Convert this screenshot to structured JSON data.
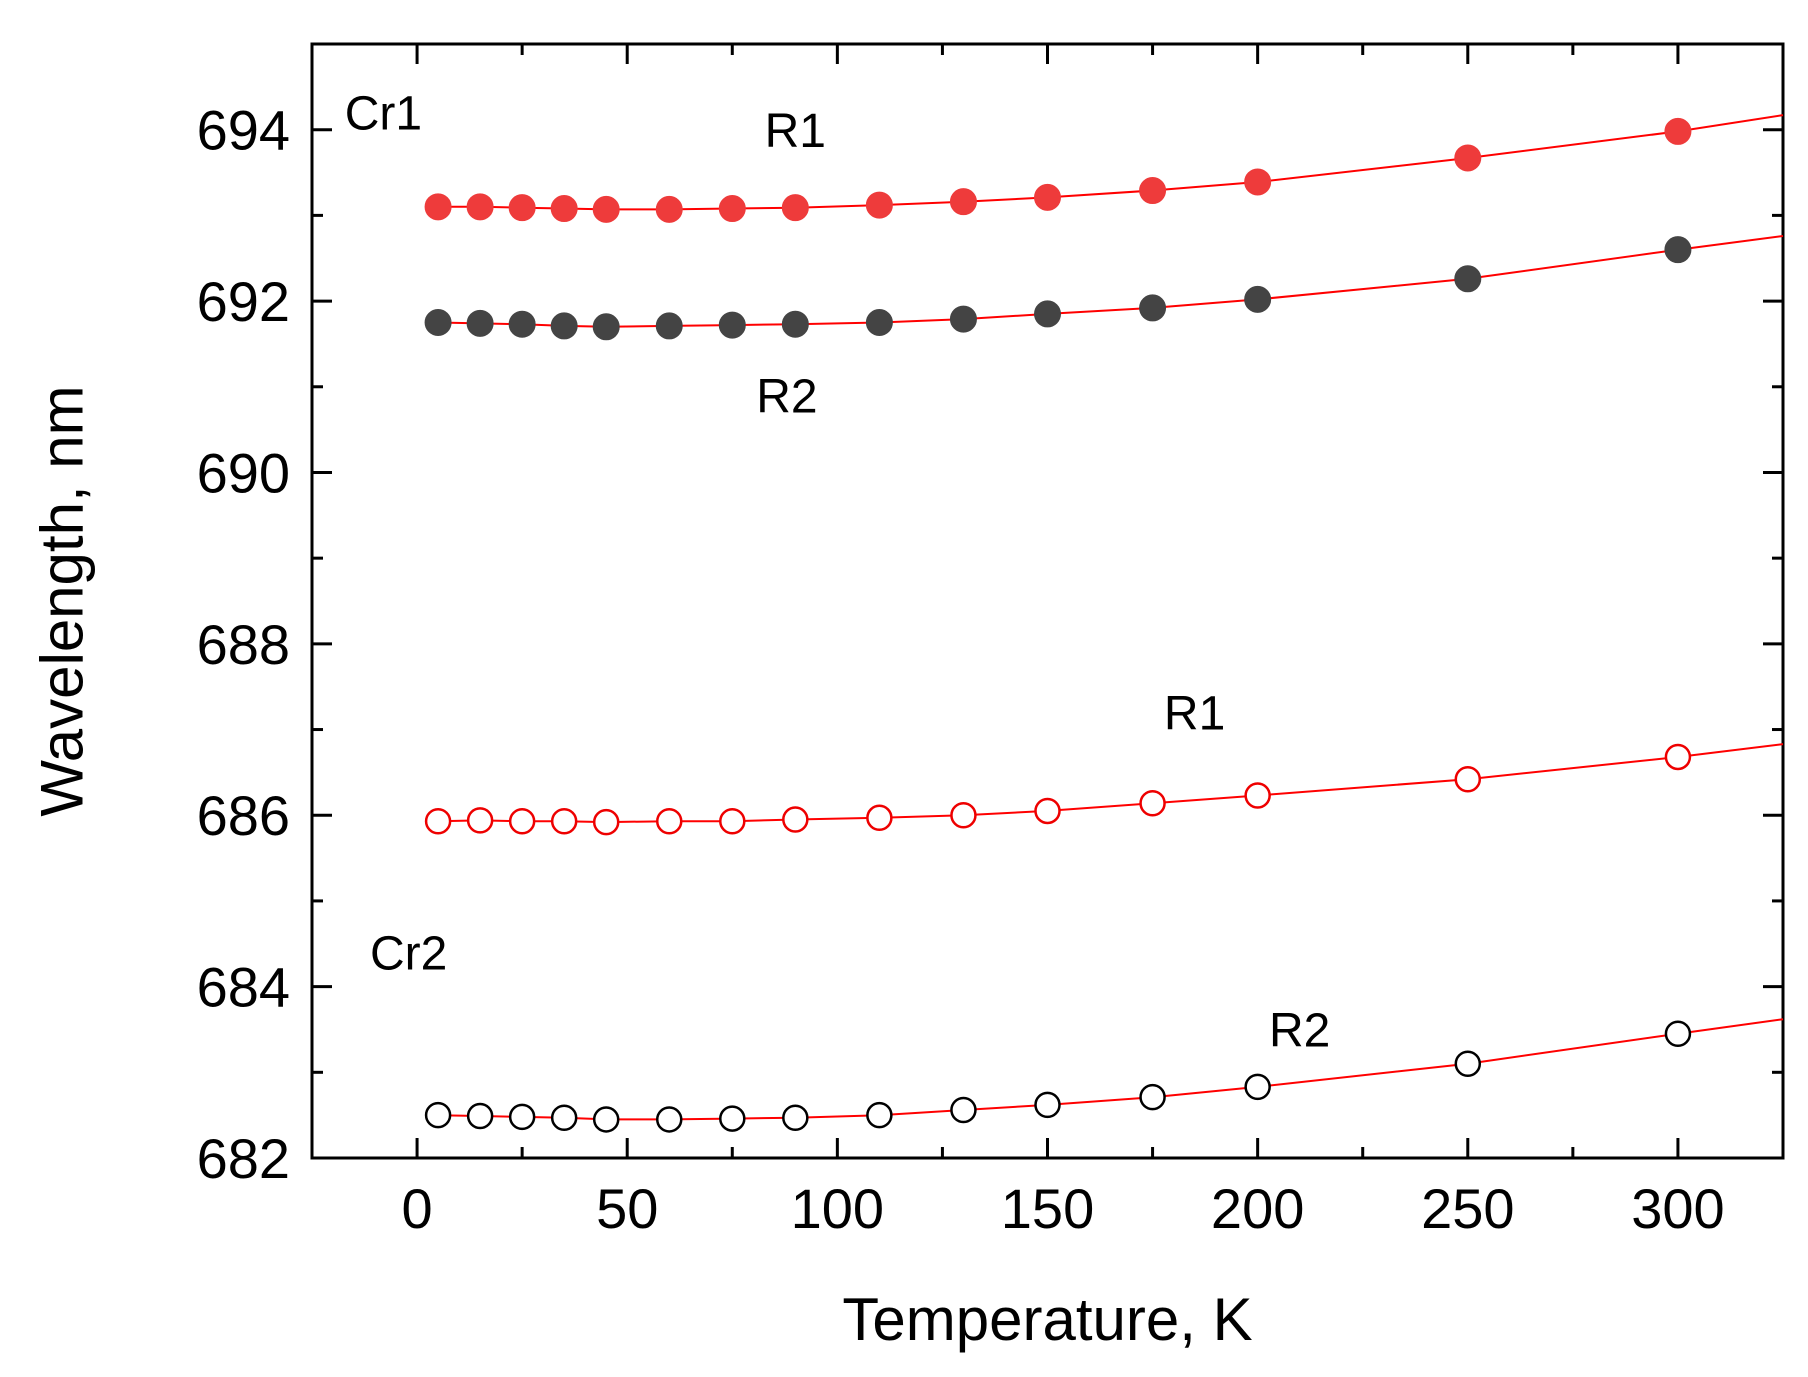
{
  "chart_data": {
    "type": "scatter",
    "title": "",
    "xlabel": "Temperature, K",
    "ylabel": "Wavelength, nm",
    "xlim": [
      -25,
      325
    ],
    "ylim": [
      682,
      695
    ],
    "x_ticks": [
      0,
      50,
      100,
      150,
      200,
      250,
      300
    ],
    "x_tick_labels": [
      "0",
      "50",
      "100",
      "150",
      "200",
      "250",
      "300"
    ],
    "y_ticks": [
      682,
      684,
      686,
      688,
      690,
      692,
      694
    ],
    "y_tick_labels": [
      "682",
      "684",
      "686",
      "688",
      "690",
      "692",
      "694"
    ],
    "grid": false,
    "fit_line_color": "#ff0000",
    "x": [
      5,
      15,
      25,
      35,
      45,
      60,
      75,
      90,
      110,
      130,
      150,
      175,
      200,
      250,
      300
    ],
    "series": [
      {
        "name": "Cr1 R1",
        "marker": "filled-circle",
        "color": "#ee3b3b",
        "values": [
          693.1,
          693.1,
          693.09,
          693.08,
          693.07,
          693.07,
          693.08,
          693.09,
          693.12,
          693.16,
          693.21,
          693.29,
          693.39,
          693.67,
          693.98
        ],
        "fit_end": 694.17
      },
      {
        "name": "Cr1 R2",
        "marker": "filled-circle",
        "color": "#444444",
        "values": [
          691.75,
          691.74,
          691.73,
          691.71,
          691.7,
          691.71,
          691.72,
          691.73,
          691.75,
          691.79,
          691.85,
          691.92,
          692.02,
          692.26,
          692.6
        ],
        "fit_end": 692.76
      },
      {
        "name": "Cr2 R1",
        "marker": "open-circle",
        "color": "#ee0000",
        "values": [
          685.93,
          685.94,
          685.93,
          685.93,
          685.92,
          685.93,
          685.93,
          685.95,
          685.97,
          686.0,
          686.05,
          686.14,
          686.23,
          686.42,
          686.68
        ],
        "fit_end": 686.83
      },
      {
        "name": "Cr2 R2",
        "marker": "open-circle",
        "color": "#000000",
        "values": [
          682.5,
          682.49,
          682.48,
          682.47,
          682.45,
          682.45,
          682.46,
          682.47,
          682.5,
          682.56,
          682.62,
          682.71,
          682.83,
          683.1,
          683.45
        ],
        "fit_end": 683.62
      }
    ],
    "annotations": [
      {
        "text": "Cr1",
        "x": -8,
        "y": 694.0
      },
      {
        "text": "R1",
        "x": 90,
        "y": 693.8
      },
      {
        "text": "R2",
        "x": 88,
        "y": 690.7
      },
      {
        "text": "R1",
        "x": 185,
        "y": 687.0
      },
      {
        "text": "Cr2",
        "x": -2,
        "y": 684.2
      },
      {
        "text": "R2",
        "x": 210,
        "y": 683.3
      }
    ]
  }
}
